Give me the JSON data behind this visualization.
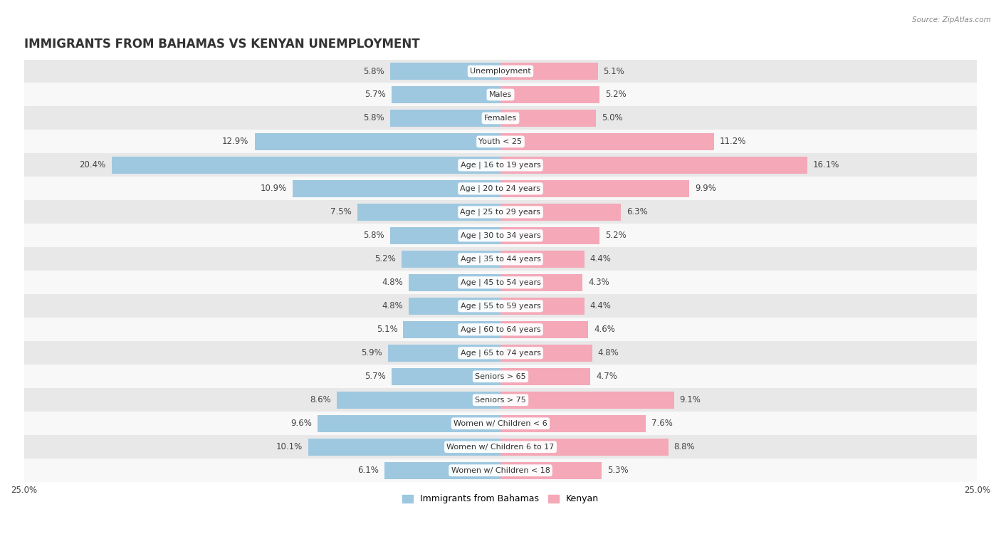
{
  "title": "IMMIGRANTS FROM BAHAMAS VS KENYAN UNEMPLOYMENT",
  "source": "Source: ZipAtlas.com",
  "categories": [
    "Unemployment",
    "Males",
    "Females",
    "Youth < 25",
    "Age | 16 to 19 years",
    "Age | 20 to 24 years",
    "Age | 25 to 29 years",
    "Age | 30 to 34 years",
    "Age | 35 to 44 years",
    "Age | 45 to 54 years",
    "Age | 55 to 59 years",
    "Age | 60 to 64 years",
    "Age | 65 to 74 years",
    "Seniors > 65",
    "Seniors > 75",
    "Women w/ Children < 6",
    "Women w/ Children 6 to 17",
    "Women w/ Children < 18"
  ],
  "bahamas_values": [
    5.8,
    5.7,
    5.8,
    12.9,
    20.4,
    10.9,
    7.5,
    5.8,
    5.2,
    4.8,
    4.8,
    5.1,
    5.9,
    5.7,
    8.6,
    9.6,
    10.1,
    6.1
  ],
  "kenyan_values": [
    5.1,
    5.2,
    5.0,
    11.2,
    16.1,
    9.9,
    6.3,
    5.2,
    4.4,
    4.3,
    4.4,
    4.6,
    4.8,
    4.7,
    9.1,
    7.6,
    8.8,
    5.3
  ],
  "bahamas_color": "#9ec8e0",
  "kenyan_color": "#f4a8b8",
  "bahamas_label": "Immigrants from Bahamas",
  "kenyan_label": "Kenyan",
  "xlim": 25.0,
  "bar_height": 0.72,
  "bg_color": "#f0f0f0",
  "row_odd_color": "#e8e8e8",
  "row_even_color": "#f8f8f8",
  "value_fontsize": 8.5,
  "title_fontsize": 12,
  "category_fontsize": 8.0,
  "axis_label_fontsize": 8.5
}
